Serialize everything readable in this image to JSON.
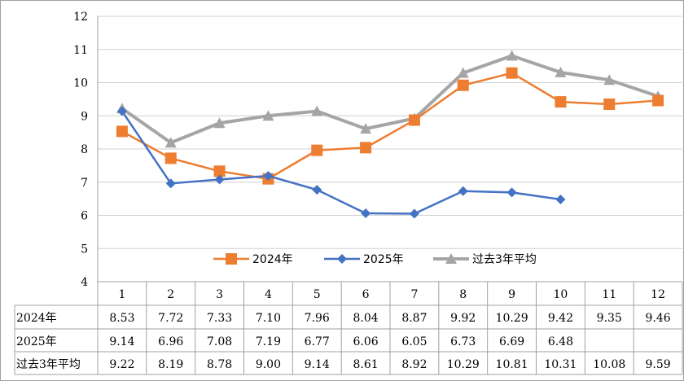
{
  "chart_data": {
    "type": "line",
    "title": "",
    "xlabel": "",
    "ylabel": "",
    "categories": [
      "1",
      "2",
      "3",
      "4",
      "5",
      "6",
      "7",
      "8",
      "9",
      "10",
      "11",
      "12"
    ],
    "ylim": [
      4,
      12
    ],
    "yticks": [
      "4",
      "5",
      "6",
      "7",
      "8",
      "9",
      "10",
      "11",
      "12"
    ],
    "grid": true,
    "legend_position": "bottom-center",
    "data_table": true,
    "series": [
      {
        "name": "2024年",
        "color": "#ED7D31",
        "marker": "square",
        "values": [
          8.53,
          7.72,
          7.33,
          7.1,
          7.96,
          8.04,
          8.87,
          9.92,
          10.29,
          9.42,
          9.35,
          9.46
        ],
        "labels": [
          "8.53",
          "7.72",
          "7.33",
          "7.10",
          "7.96",
          "8.04",
          "8.87",
          "9.92",
          "10.29",
          "9.42",
          "9.35",
          "9.46"
        ]
      },
      {
        "name": "2025年",
        "color": "#4472C4",
        "marker": "diamond",
        "values": [
          9.14,
          6.96,
          7.08,
          7.19,
          6.77,
          6.06,
          6.05,
          6.73,
          6.69,
          6.48,
          null,
          null
        ],
        "labels": [
          "9.14",
          "6.96",
          "7.08",
          "7.19",
          "6.77",
          "6.06",
          "6.05",
          "6.73",
          "6.69",
          "6.48",
          "",
          ""
        ]
      },
      {
        "name": "过去3年平均",
        "color": "#A5A5A5",
        "marker": "triangle",
        "values": [
          9.22,
          8.19,
          8.78,
          9.0,
          9.14,
          8.61,
          8.92,
          10.29,
          10.81,
          10.31,
          10.08,
          9.59
        ],
        "labels": [
          "9.22",
          "8.19",
          "8.78",
          "9.00",
          "9.14",
          "8.61",
          "8.92",
          "10.29",
          "10.81",
          "10.31",
          "10.08",
          "9.59"
        ]
      }
    ]
  }
}
